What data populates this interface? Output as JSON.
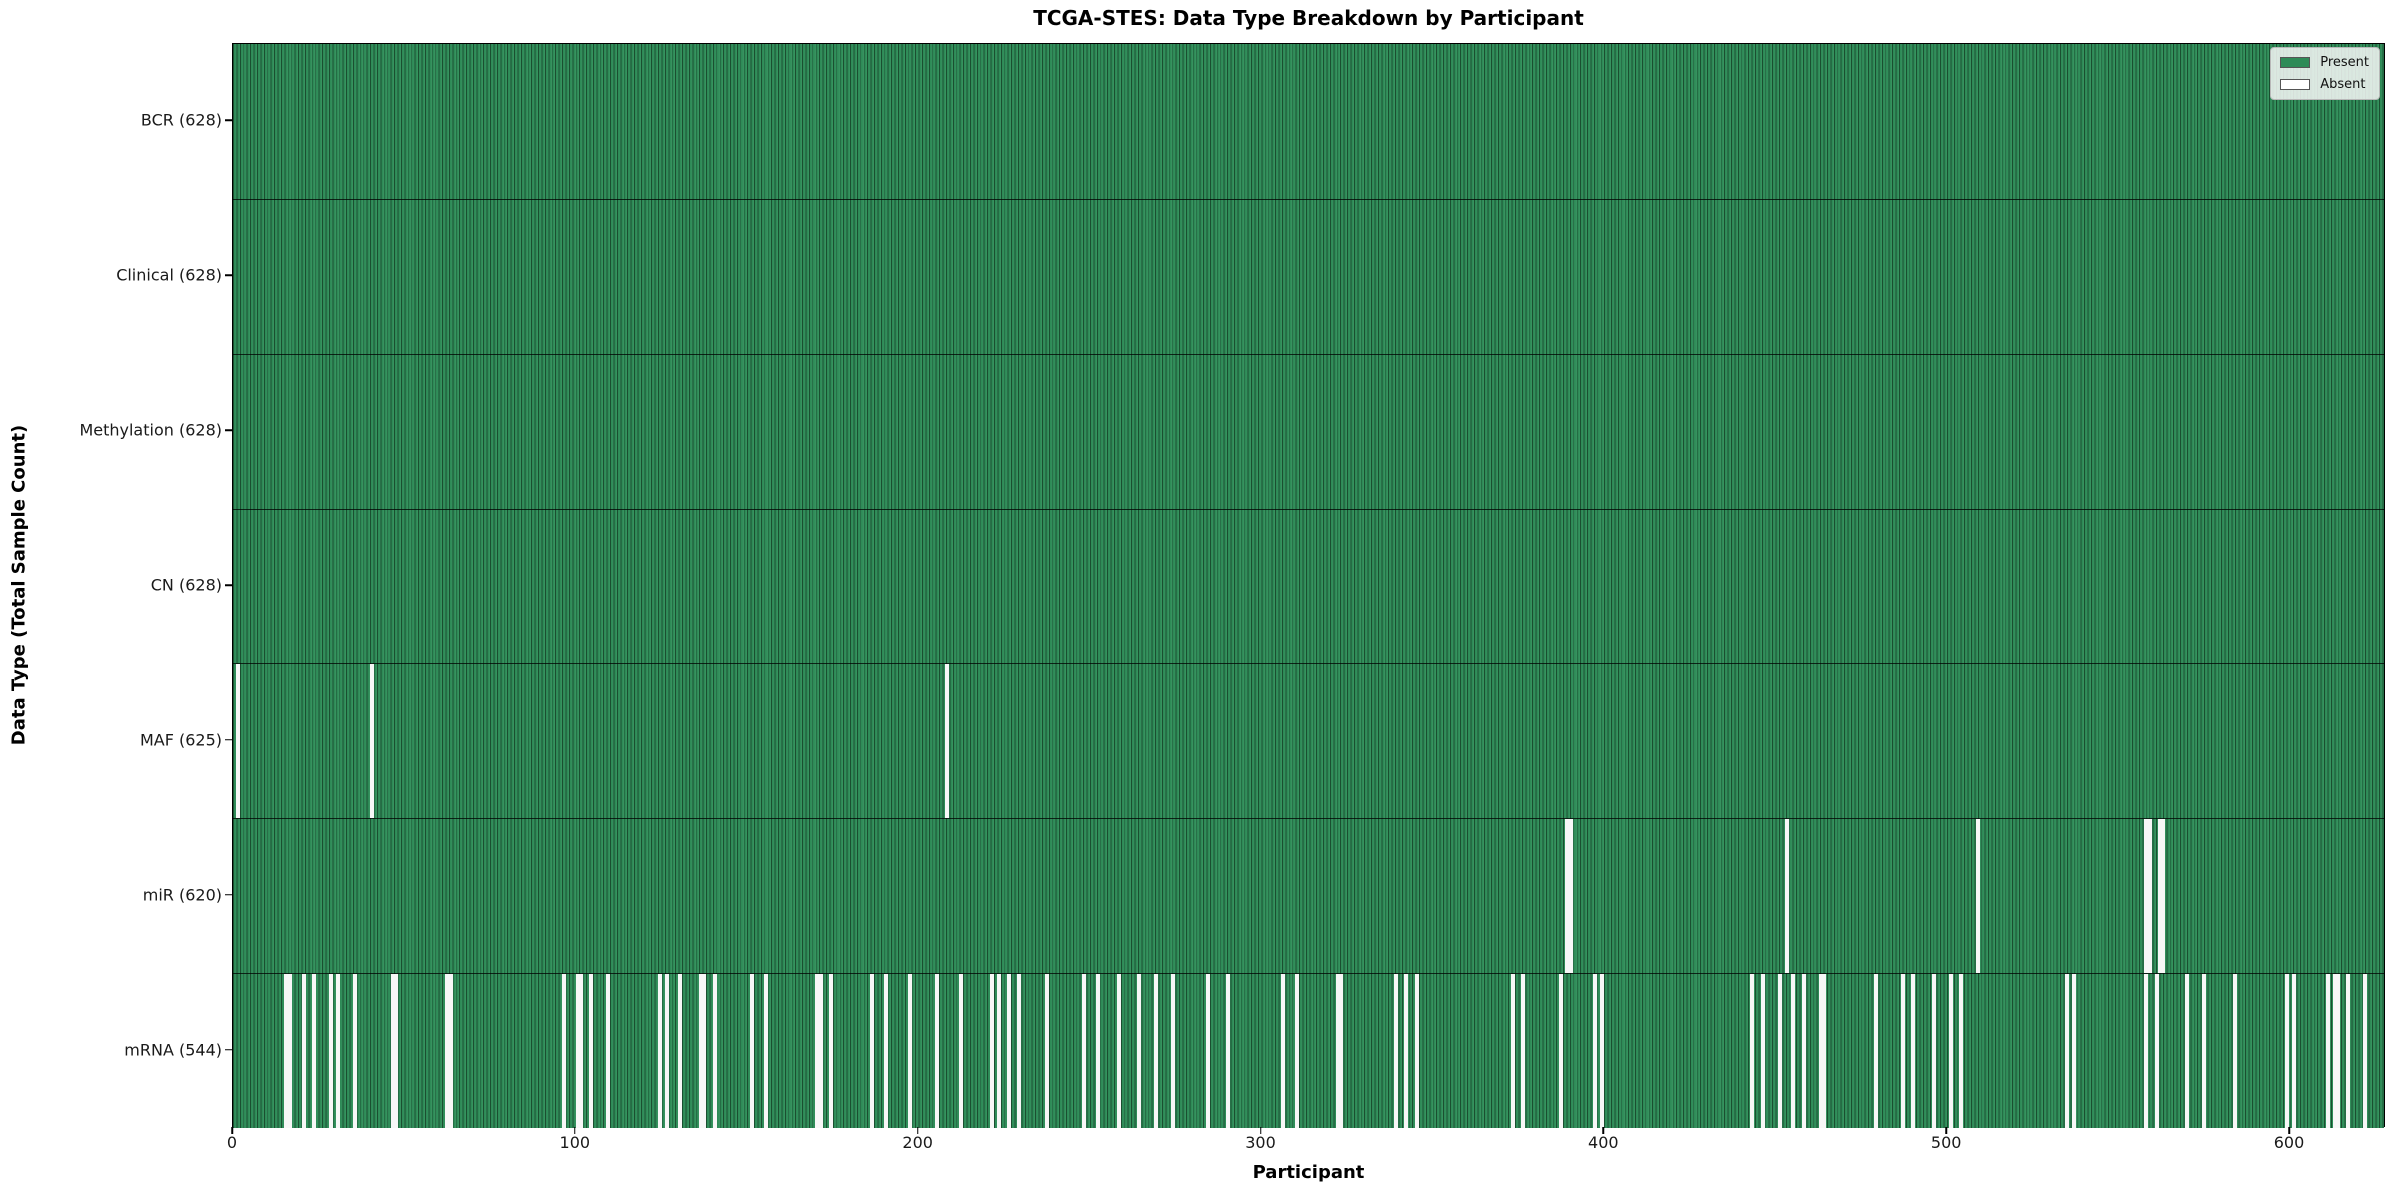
{
  "title": "TCGA-STES: Data Type Breakdown by Participant",
  "x_axis": {
    "label": "Participant",
    "ticks": [
      0,
      100,
      200,
      300,
      400,
      500,
      600
    ]
  },
  "y_axis": {
    "label": "Data Type (Total Sample Count)"
  },
  "legend": [
    {
      "label": "Present",
      "color": "#2e8b57"
    },
    {
      "label": "Absent",
      "color": "#ffffff"
    }
  ],
  "colors": {
    "present": "#2e8b57",
    "cell_edge": "#1a4f30",
    "absent": "#f7f7f7",
    "plot_border": "#000000"
  },
  "chart_data": {
    "type": "heatmap",
    "title": "TCGA-STES: Data Type Breakdown by Participant",
    "xlabel": "Participant",
    "ylabel": "Data Type (Total Sample Count)",
    "x_ticks": [
      0,
      100,
      200,
      300,
      400,
      500,
      600
    ],
    "n_participants": 628,
    "legend_position": "upper right",
    "legend_entries": [
      "Present",
      "Absent"
    ],
    "rows": [
      {
        "name": "BCR",
        "label": "BCR (628)",
        "present_count": 628,
        "absent_participants": []
      },
      {
        "name": "Clinical",
        "label": "Clinical (628)",
        "present_count": 628,
        "absent_participants": []
      },
      {
        "name": "Methylation",
        "label": "Methylation (628)",
        "present_count": 628,
        "absent_participants": []
      },
      {
        "name": "CN",
        "label": "CN (628)",
        "present_count": 628,
        "absent_participants": []
      },
      {
        "name": "MAF",
        "label": "MAF (625)",
        "present_count": 625,
        "absent_participants": [
          1,
          40,
          208
        ]
      },
      {
        "name": "miR",
        "label": "miR (620)",
        "present_count": 620,
        "absent_participants": [
          389,
          390,
          453,
          509,
          558,
          559,
          562,
          563
        ]
      },
      {
        "name": "mRNA",
        "label": "mRNA (544)",
        "present_count": 544,
        "absent_participants": [
          15,
          16,
          20,
          23,
          28,
          30,
          35,
          46,
          47,
          62,
          63,
          96,
          100,
          101,
          104,
          109,
          124,
          126,
          130,
          136,
          137,
          140,
          151,
          155,
          170,
          171,
          174,
          186,
          190,
          197,
          205,
          212,
          221,
          223,
          226,
          229,
          237,
          248,
          252,
          258,
          264,
          269,
          274,
          284,
          290,
          306,
          310,
          322,
          323,
          339,
          342,
          345,
          373,
          376,
          387,
          397,
          399,
          443,
          446,
          451,
          455,
          458,
          463,
          464,
          479,
          487,
          490,
          496,
          501,
          504,
          535,
          537,
          558,
          561,
          570,
          575,
          584,
          599,
          601,
          611,
          613,
          614,
          617,
          622
        ]
      }
    ]
  }
}
